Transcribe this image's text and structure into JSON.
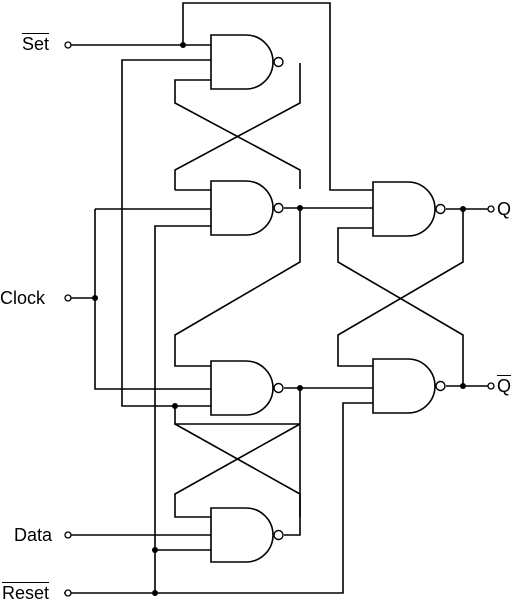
{
  "labels": {
    "set": "Set",
    "clock": "Clock",
    "data": "Data",
    "reset": "Reset",
    "q": "Q",
    "q_bar": "Q"
  },
  "gates": [
    {
      "id": "set-latch-top-nand"
    },
    {
      "id": "set-latch-bottom-nand"
    },
    {
      "id": "reset-latch-top-nand"
    },
    {
      "id": "reset-latch-bottom-nand"
    },
    {
      "id": "output-latch-top-nand"
    },
    {
      "id": "output-latch-bottom-nand"
    }
  ]
}
